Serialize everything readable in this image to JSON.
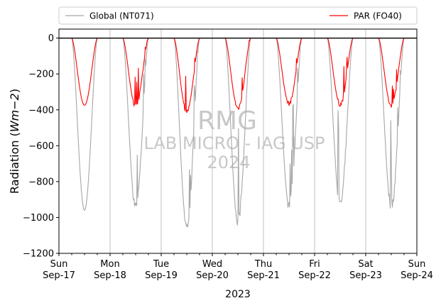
{
  "chart_data": {
    "type": "line",
    "xlabel": "2023",
    "ylabel": "Radiation (Wm−2)",
    "ylim": [
      -1200,
      50
    ],
    "yticks": [
      0,
      -200,
      -400,
      -600,
      -800,
      -1000,
      -1200
    ],
    "xlim": [
      "2023-09-17 00:00",
      "2023-09-24 00:00"
    ],
    "xticks": [
      {
        "day": "Sun",
        "date": "Sep-17"
      },
      {
        "day": "Mon",
        "date": "Sep-18"
      },
      {
        "day": "Tue",
        "date": "Sep-19"
      },
      {
        "day": "Wed",
        "date": "Sep-20"
      },
      {
        "day": "Thu",
        "date": "Sep-21"
      },
      {
        "day": "Fri",
        "date": "Sep-22"
      },
      {
        "day": "Sat",
        "date": "Sep-23"
      },
      {
        "day": "Sun",
        "date": "Sep-24"
      }
    ],
    "grid": "vertical lines at day boundaries",
    "legend": {
      "placement": "top (above plot)",
      "ncol": 2
    },
    "watermark": [
      "RMG",
      "LAB MICRO - IAG USP",
      "2024"
    ],
    "series": [
      {
        "name": "Global (NT071)",
        "color": "#a6a6a6",
        "daily_minimum": [
          -960,
          -940,
          -1050,
          -1020,
          -930,
          -930,
          -940
        ],
        "shape": "daily dips from 0 during daylight hours (~06:00–18:00)"
      },
      {
        "name": "PAR (FO40)",
        "color": "#ff0000",
        "daily_minimum": [
          -375,
          -380,
          -410,
          -390,
          -365,
          -370,
          -375
        ],
        "shape": "daily dips from 0 during daylight hours (~06:00–18:00)"
      }
    ],
    "reference_line": {
      "y": 0,
      "color": "#000000"
    }
  }
}
